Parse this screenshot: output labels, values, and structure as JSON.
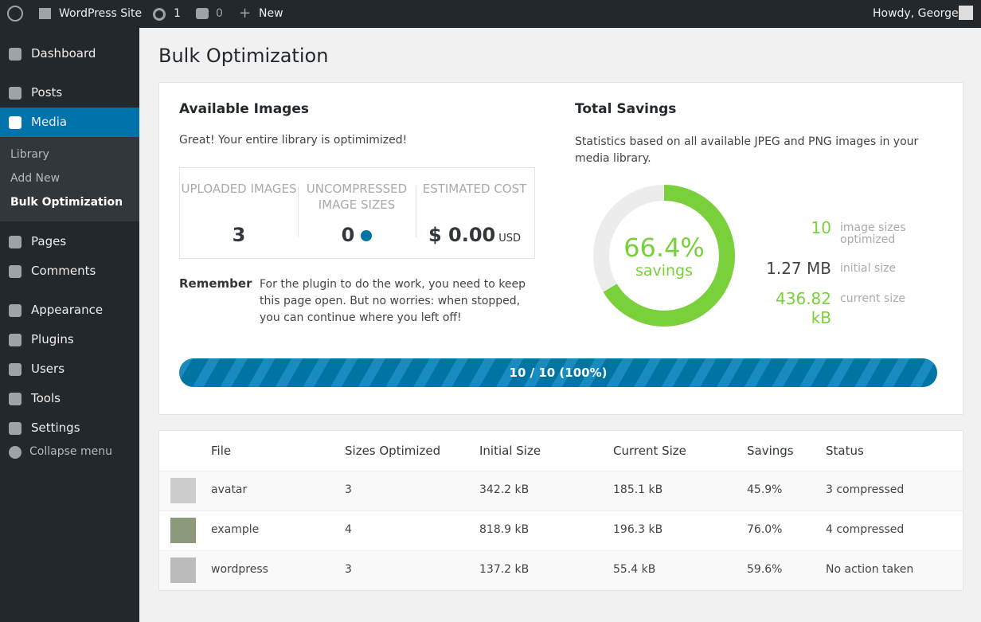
{
  "admin_bar": {
    "site": "WordPress Site",
    "updates": "1",
    "comments": "0",
    "new": "New",
    "greeting": "Howdy, George"
  },
  "sidebar": {
    "items_top": [
      "Dashboard",
      "Posts",
      "Media"
    ],
    "submenu": [
      "Library",
      "Add New",
      "Bulk Optimization"
    ],
    "items_bottom": [
      "Pages",
      "Comments",
      "Appearance",
      "Plugins",
      "Users",
      "Tools",
      "Settings"
    ],
    "collapse": "Collapse menu"
  },
  "page": {
    "title": "Bulk Optimization"
  },
  "available": {
    "heading": "Available Images",
    "message": "Great! Your entire library is optimimized!",
    "stats": [
      {
        "label": "UPLOADED IMAGES",
        "value": "3"
      },
      {
        "label": "UNCOMPRESSED IMAGE SIZES",
        "value": "0"
      },
      {
        "label": "ESTIMATED COST",
        "value": "$ 0.00",
        "unit": "USD"
      }
    ],
    "remember_label": "Remember",
    "remember_text": "For the plugin to do the work, you need to keep this page open. But no worries: when stopped, you can continue where you left off!"
  },
  "savings": {
    "heading": "Total Savings",
    "description": "Statistics based on all available JPEG and PNG images in your media library.",
    "percent": {
      "value": 66.4,
      "label": "66.4%"
    },
    "percent_caption": "savings",
    "stats": [
      {
        "value": "10",
        "label": "image sizes optimized"
      },
      {
        "value": "1.27 MB",
        "label": "initial size"
      },
      {
        "value": "436.82 kB",
        "label": "current size"
      }
    ]
  },
  "progress": {
    "done": 10,
    "total": 10,
    "label": "10 / 10 (100%)"
  },
  "table": {
    "columns": [
      "File",
      "Sizes Optimized",
      "Initial Size",
      "Current Size",
      "Savings",
      "Status"
    ],
    "rows": [
      [
        "avatar",
        "3",
        "342.2 kB",
        "185.1 kB",
        "45.9%",
        "3 compressed"
      ],
      [
        "example",
        "4",
        "818.9 kB",
        "196.3 kB",
        "76.0%",
        "4 compressed"
      ],
      [
        "wordpress",
        "3",
        "137.2 kB",
        "55.4 kB",
        "59.6%",
        "No action taken"
      ]
    ]
  }
}
